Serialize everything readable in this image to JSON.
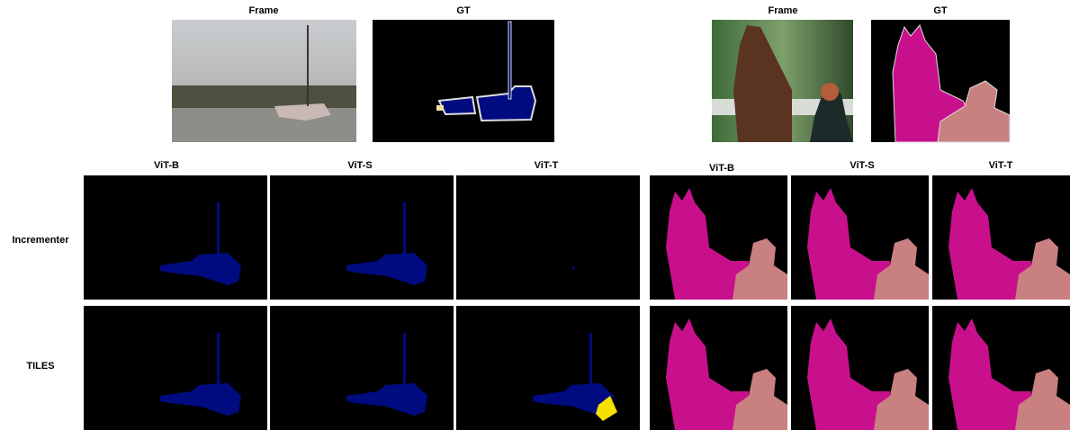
{
  "left": {
    "top_labels": [
      "Frame",
      "GT"
    ],
    "columns": [
      "ViT-B",
      "ViT-S",
      "ViT-T"
    ]
  },
  "right": {
    "top_labels": [
      "Frame",
      "GT"
    ],
    "columns": [
      "ViT-B",
      "ViT-S",
      "ViT-T"
    ]
  },
  "rows": [
    "Incrementer",
    "TILES"
  ]
}
